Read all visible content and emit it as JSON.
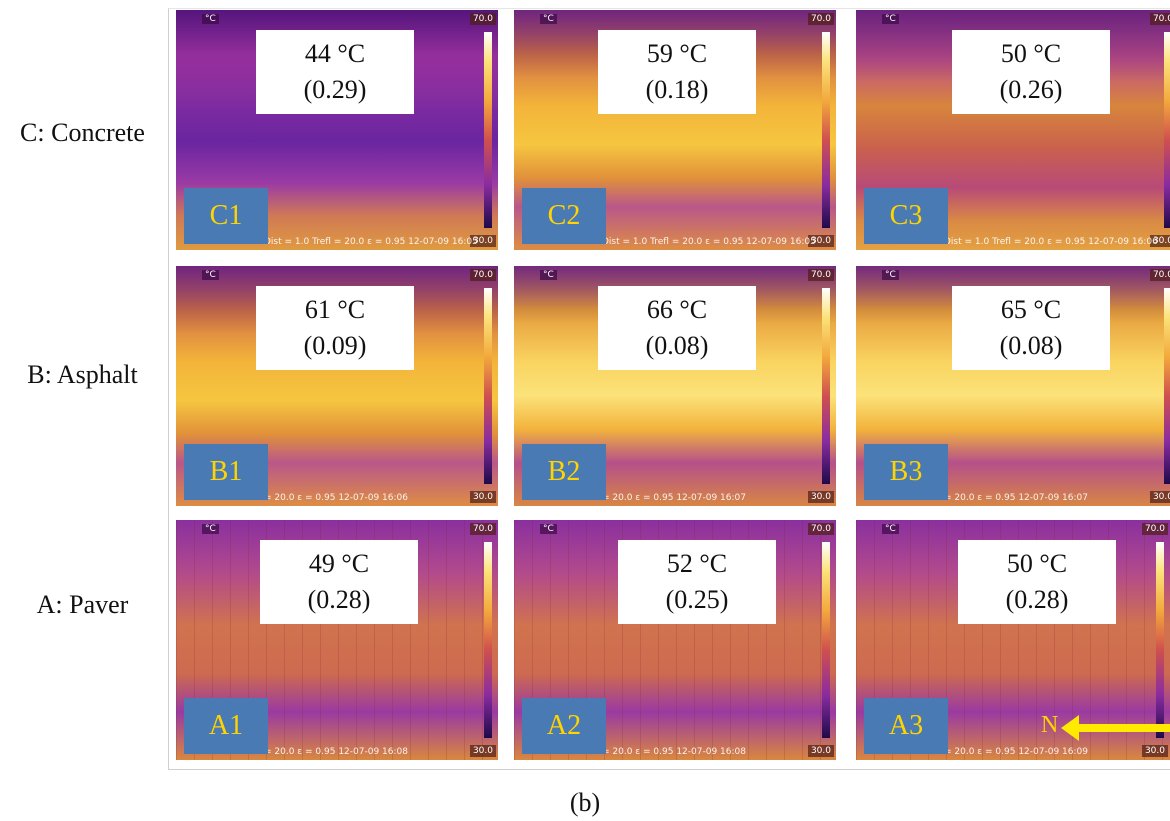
{
  "scale": {
    "max": "70.0",
    "min": "30.0",
    "unit": "°C"
  },
  "rows": [
    {
      "label": "C: Concrete"
    },
    {
      "label": "B: Asphalt"
    },
    {
      "label": "A: Paver"
    }
  ],
  "cells": [
    {
      "id": "C1",
      "temp": "44 °C",
      "ratio": "(0.29)",
      "readout": "Dist = 1.0   Trefl = 20.0   ε = 0.95   12-07-09 16:05"
    },
    {
      "id": "C2",
      "temp": "59 °C",
      "ratio": "(0.18)",
      "readout": "Dist = 1.0   Trefl = 20.0   ε = 0.95   12-07-09 16:05"
    },
    {
      "id": "C3",
      "temp": "50 °C",
      "ratio": "(0.26)",
      "readout": "Dist = 1.0   Trefl = 20.0   ε = 0.95   12-07-09 16:06"
    },
    {
      "id": "B1",
      "temp": "61 °C",
      "ratio": "(0.09)",
      "readout": "= 20.0   ε = 0.95   12-07-09 16:06"
    },
    {
      "id": "B2",
      "temp": "66 °C",
      "ratio": "(0.08)",
      "readout": "= 20.0   ε = 0.95   12-07-09 16:07"
    },
    {
      "id": "B3",
      "temp": "65 °C",
      "ratio": "(0.08)",
      "readout": "= 20.0   ε = 0.95   12-07-09 16:07"
    },
    {
      "id": "A1",
      "temp": "49 °C",
      "ratio": "(0.28)",
      "readout": "= 20.0   ε = 0.95   12-07-09 16:08"
    },
    {
      "id": "A2",
      "temp": "52 °C",
      "ratio": "(0.25)",
      "readout": "= 20.0   ε = 0.95   12-07-09 16:08"
    },
    {
      "id": "A3",
      "temp": "50 °C",
      "ratio": "(0.28)",
      "readout": "= 20.0   ε = 0.95   12-07-09 16:09"
    }
  ],
  "north_label": "N",
  "caption": "(b)"
}
